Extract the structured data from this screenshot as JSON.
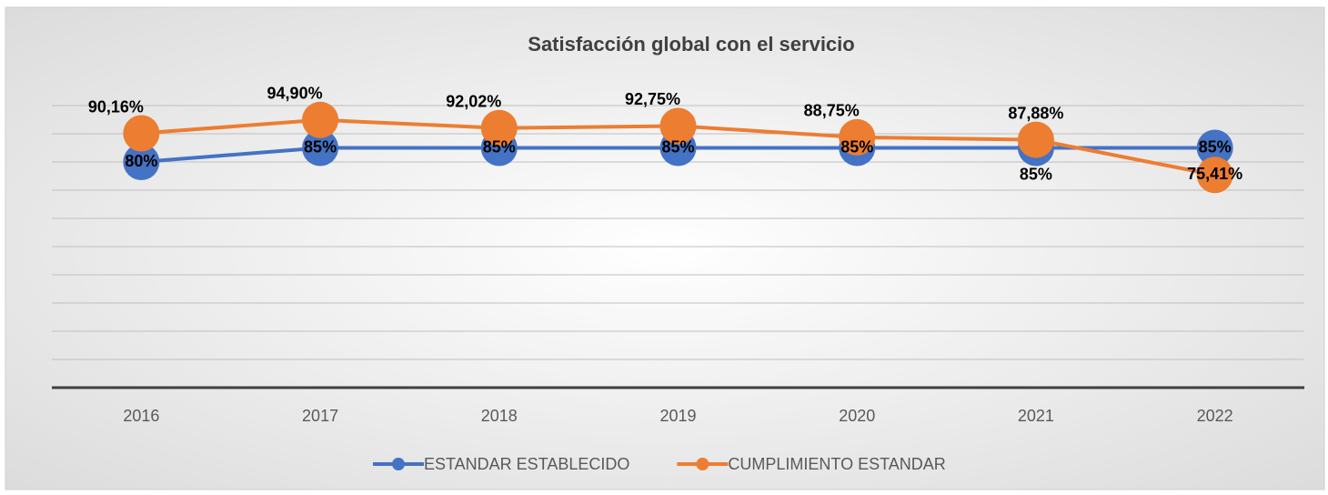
{
  "chart_data": {
    "type": "line",
    "title": "Satisfacción global con el servicio",
    "categories": [
      "2016",
      "2017",
      "2018",
      "2019",
      "2020",
      "2021",
      "2022"
    ],
    "series": [
      {
        "name": "ESTANDAR ESTABLECIDO",
        "color": "#4472c4",
        "values": [
          80,
          85,
          85,
          85,
          85,
          85,
          85
        ],
        "value_labels": [
          "80%",
          "85%",
          "85%",
          "85%",
          "85%",
          "85%",
          "85%"
        ]
      },
      {
        "name": "CUMPLIMIENTO ESTANDAR",
        "color": "#ed7d31",
        "values": [
          90.16,
          94.9,
          92.02,
          92.75,
          88.75,
          87.88,
          75.41
        ],
        "value_labels": [
          "90,16%",
          "94,90%",
          "92,02%",
          "92,75%",
          "88,75%",
          "87,88%",
          "75,41%"
        ]
      }
    ],
    "ylim": [
      0,
      100
    ],
    "yticks": [
      0,
      10,
      20,
      30,
      40,
      50,
      60,
      70,
      80,
      90,
      100
    ],
    "grid": true,
    "legend": "bottom"
  }
}
